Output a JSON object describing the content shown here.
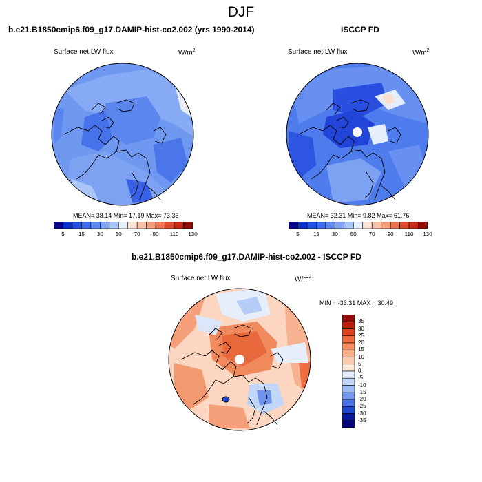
{
  "page": {
    "season": "DJF",
    "units_base": "W/m",
    "units_exp": "2"
  },
  "panels": [
    {
      "id": "model",
      "title": "b.e21.B1850cmip6.f09_g17.DAMIP-hist-co2.002 (yrs 1990-2014)",
      "variable": "Surface net LW flux",
      "stats": "MEAN=  38.14  Min=  17.19  Max=  73.36",
      "palette": "sequential",
      "mean_value": 38.14,
      "min_value": 17.19,
      "max_value": 73.36,
      "colorbar_ticks": [
        "5",
        "15",
        "30",
        "50",
        "70",
        "90",
        "110",
        "130"
      ],
      "colorbar_colors": [
        "#08088a",
        "#0b32cc",
        "#2050e0",
        "#3c6cec",
        "#5a88f0",
        "#7ea4f5",
        "#a6c4f8",
        "#e6eefc",
        "#fbe4d6",
        "#f8c0a4",
        "#f39a78",
        "#ec7250",
        "#e04a2c",
        "#c62a14",
        "#920d06"
      ]
    },
    {
      "id": "obs",
      "title": "ISCCP FD",
      "variable": "Surface net LW flux",
      "stats": "MEAN=  32.31  Min=   9.82  Max=  61.76",
      "palette": "sequential",
      "mean_value": 32.31,
      "min_value": 9.82,
      "max_value": 61.76,
      "colorbar_ticks": [
        "5",
        "15",
        "30",
        "50",
        "70",
        "90",
        "110",
        "130"
      ],
      "colorbar_colors": [
        "#08088a",
        "#0b32cc",
        "#2050e0",
        "#3c6cec",
        "#5a88f0",
        "#7ea4f5",
        "#a6c4f8",
        "#e6eefc",
        "#fbe4d6",
        "#f8c0a4",
        "#f39a78",
        "#ec7250",
        "#e04a2c",
        "#c62a14",
        "#920d06"
      ]
    },
    {
      "id": "diff",
      "title": "b.e21.B1850cmip6.f09_g17.DAMIP-hist-co2.002 - ISCCP FD",
      "variable": "Surface net LW flux",
      "stats": "MIN = -33.31 MAX =  30.49",
      "palette": "diverging",
      "min_value": -33.31,
      "max_value": 30.49,
      "colorbar_ticks": [
        "35",
        "30",
        "25",
        "20",
        "15",
        "10",
        "5",
        "0",
        "-5",
        "-10",
        "-15",
        "-20",
        "-25",
        "-30",
        "-35"
      ],
      "colorbar_colors": [
        "#920d06",
        "#c01e0c",
        "#df4420",
        "#ee6a3e",
        "#f48e62",
        "#f8ae88",
        "#fbcbad",
        "#fde6d8",
        "#e2ecfb",
        "#c2d6f8",
        "#9cbaf4",
        "#7498ee",
        "#4a72e6",
        "#2048cc",
        "#0a1aa0",
        "#04047a"
      ]
    }
  ]
}
